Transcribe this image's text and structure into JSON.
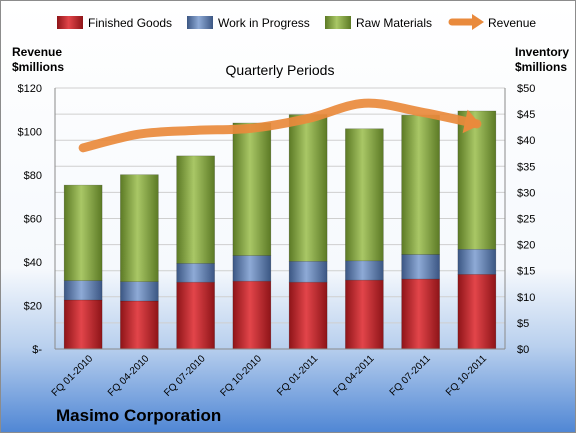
{
  "chart_data": {
    "type": "bar",
    "title": "Quarterly Periods",
    "company": "Masimo Corporation",
    "left_axis_label": [
      "Revenue",
      "$millions"
    ],
    "right_axis_label": [
      "Inventory",
      "$millions"
    ],
    "categories": [
      "FQ 01-2010",
      "FQ 04-2010",
      "FQ 07-2010",
      "FQ 10-2010",
      "FQ 01-2011",
      "FQ 04-2011",
      "FQ 07-2011",
      "FQ 10-2011"
    ],
    "left_ticks": [
      "$-",
      "$20",
      "$40",
      "$60",
      "$80",
      "$100",
      "$120"
    ],
    "right_ticks": [
      "$0",
      "$5",
      "$10",
      "$15",
      "$20",
      "$25",
      "$30",
      "$35",
      "$40",
      "$45",
      "$50"
    ],
    "ylim_left": [
      0,
      120
    ],
    "ylim_right": [
      0,
      50
    ],
    "legend_position": "top",
    "grid": true,
    "series": [
      {
        "name": "Finished Goods",
        "axis": "right",
        "stack": true,
        "color": "#c0282d",
        "values": [
          9.4,
          9.2,
          12.8,
          13.0,
          12.8,
          13.2,
          13.4,
          14.3
        ]
      },
      {
        "name": "Work in Progress",
        "axis": "right",
        "stack": true,
        "color": "#4f6fa8",
        "values": [
          3.7,
          3.7,
          3.6,
          4.9,
          4.0,
          3.7,
          4.7,
          4.8
        ]
      },
      {
        "name": "Raw Materials",
        "axis": "right",
        "stack": true,
        "color": "#86a83e",
        "values": [
          18.3,
          20.5,
          20.6,
          25.4,
          28.1,
          25.3,
          26.7,
          26.5
        ]
      },
      {
        "name": "Revenue",
        "axis": "left",
        "type": "line",
        "color": "#e98a3c",
        "values": [
          92.5,
          98.8,
          100.5,
          101.5,
          106.0,
          113.0,
          109.0,
          103.5
        ]
      }
    ]
  }
}
